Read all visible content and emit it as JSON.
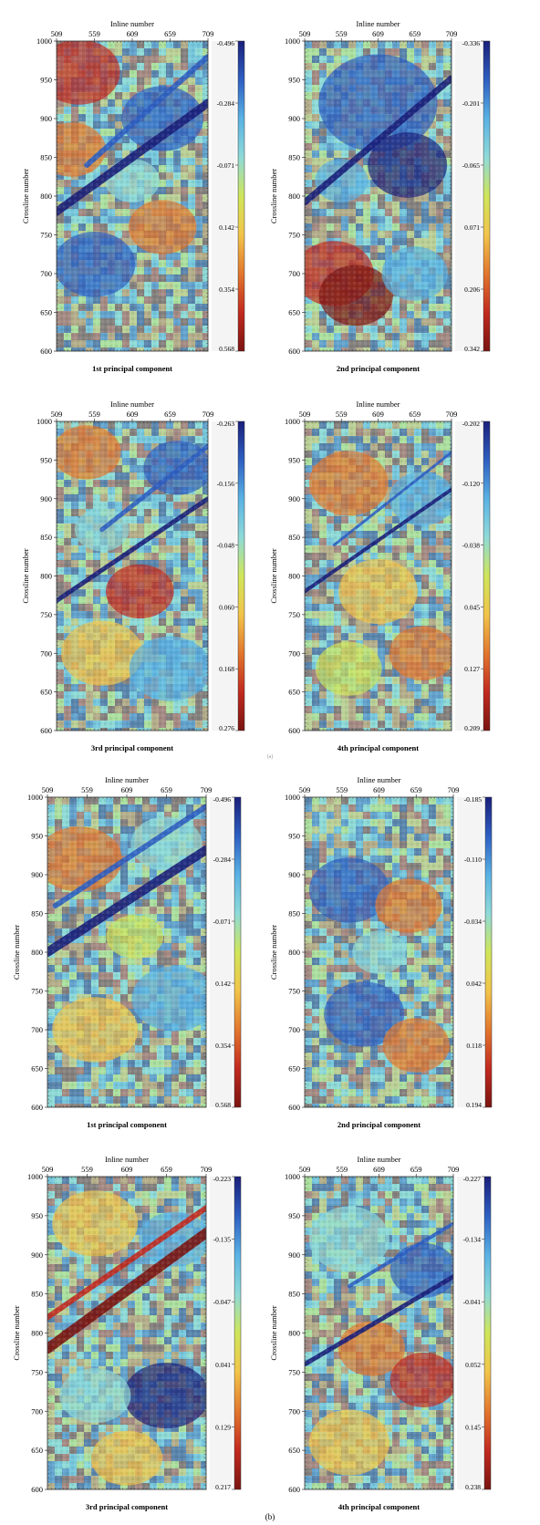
{
  "colorscale": [
    "#1a1f7a",
    "#2e5fc2",
    "#5ab2e4",
    "#8fdad8",
    "#cfe65a",
    "#f2c44a",
    "#e2772e",
    "#c22a1f",
    "#7a1411"
  ],
  "chart_data": [
    {
      "type": "heatmap",
      "title": "1st principal component",
      "xlabel": "Inline number",
      "ylabel": "Crossline number",
      "x_ticks": [
        "509",
        "559",
        "609",
        "659",
        "709"
      ],
      "y_ticks": [
        "1000",
        "950",
        "900",
        "850",
        "800",
        "750",
        "700",
        "650",
        "600"
      ],
      "xlim": [
        509,
        709
      ],
      "ylim": [
        600,
        1000
      ],
      "colorbar_ticks": [
        "-0.496",
        "-0.284",
        "-0.071",
        "0.142",
        "0.354",
        "0.568"
      ]
    },
    {
      "type": "heatmap",
      "title": "2nd principal component",
      "xlabel": "Inline number",
      "ylabel": "Crossline number",
      "x_ticks": [
        "509",
        "559",
        "609",
        "659",
        "709"
      ],
      "y_ticks": [
        "1000",
        "950",
        "900",
        "850",
        "800",
        "750",
        "700",
        "650",
        "600"
      ],
      "xlim": [
        509,
        709
      ],
      "ylim": [
        600,
        1000
      ],
      "colorbar_ticks": [
        "-0.336",
        "-0.201",
        "-0.065",
        "0.071",
        "0.206",
        "0.342"
      ]
    },
    {
      "type": "heatmap",
      "title": "3rd principal component",
      "xlabel": "Inline number",
      "ylabel": "Crossline number",
      "x_ticks": [
        "509",
        "559",
        "609",
        "659",
        "709"
      ],
      "y_ticks": [
        "1000",
        "950",
        "900",
        "850",
        "800",
        "750",
        "700",
        "650",
        "600"
      ],
      "xlim": [
        509,
        709
      ],
      "ylim": [
        600,
        1000
      ],
      "colorbar_ticks": [
        "-0.263",
        "-0.156",
        "-0.048",
        "0.060",
        "0.168",
        "0.276"
      ]
    },
    {
      "type": "heatmap",
      "title": "4th principal component",
      "xlabel": "Inline number",
      "ylabel": "Crossline number",
      "x_ticks": [
        "509",
        "559",
        "609",
        "659",
        "709"
      ],
      "y_ticks": [
        "1000",
        "950",
        "900",
        "850",
        "800",
        "750",
        "700",
        "650",
        "600"
      ],
      "xlim": [
        509,
        709
      ],
      "ylim": [
        600,
        1000
      ],
      "colorbar_ticks": [
        "-0.202",
        "-0.120",
        "-0.038",
        "0.045",
        "0.127",
        "0.209"
      ]
    },
    {
      "type": "heatmap",
      "title": "1st principal component",
      "xlabel": "Inline number",
      "ylabel": "Crossline number",
      "x_ticks": [
        "509",
        "559",
        "609",
        "659",
        "709"
      ],
      "y_ticks": [
        "1000",
        "950",
        "900",
        "850",
        "800",
        "750",
        "700",
        "650",
        "600"
      ],
      "xlim": [
        509,
        709
      ],
      "ylim": [
        600,
        1000
      ],
      "colorbar_ticks": [
        "-0.496",
        "-0.284",
        "-0.071",
        "0.142",
        "0.354",
        "0.568"
      ]
    },
    {
      "type": "heatmap",
      "title": "2nd principal component",
      "xlabel": "Inline number",
      "ylabel": "Crossline number",
      "x_ticks": [
        "509",
        "559",
        "609",
        "659",
        "709"
      ],
      "y_ticks": [
        "1000",
        "950",
        "900",
        "850",
        "800",
        "750",
        "700",
        "650",
        "600"
      ],
      "xlim": [
        509,
        709
      ],
      "ylim": [
        600,
        1000
      ],
      "colorbar_ticks": [
        "-0.185",
        "-0.110",
        "-0.034",
        "0.042",
        "0.118",
        "0.194"
      ]
    },
    {
      "type": "heatmap",
      "title": "3rd principal component",
      "xlabel": "Inline number",
      "ylabel": "Crossline number",
      "x_ticks": [
        "509",
        "559",
        "609",
        "659",
        "709"
      ],
      "y_ticks": [
        "1000",
        "950",
        "900",
        "850",
        "800",
        "750",
        "700",
        "650",
        "600"
      ],
      "xlim": [
        509,
        709
      ],
      "ylim": [
        600,
        1000
      ],
      "colorbar_ticks": [
        "-0.223",
        "-0.135",
        "-0.047",
        "0.041",
        "0.129",
        "0.217"
      ]
    },
    {
      "type": "heatmap",
      "title": "4th principal component",
      "xlabel": "Inline number",
      "ylabel": "Crossline number",
      "x_ticks": [
        "509",
        "559",
        "609",
        "659",
        "709"
      ],
      "y_ticks": [
        "1000",
        "950",
        "900",
        "850",
        "800",
        "750",
        "700",
        "650",
        "600"
      ],
      "xlim": [
        509,
        709
      ],
      "ylim": [
        600,
        1000
      ],
      "colorbar_ticks": [
        "-0.227",
        "-0.134",
        "-0.041",
        "0.052",
        "0.145",
        "0.238"
      ]
    }
  ],
  "figure": {
    "caption_a": "(a)",
    "caption_b": "(b)"
  }
}
